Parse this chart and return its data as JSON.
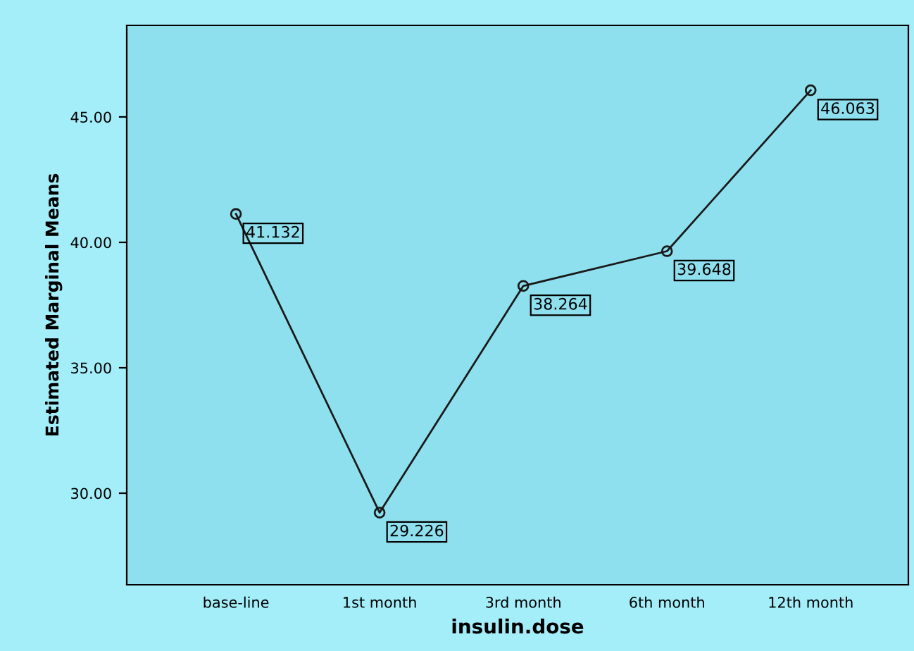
{
  "chart_data": {
    "type": "line",
    "xlabel": "insulin.dose",
    "ylabel": "Estimated Marginal Means",
    "categories": [
      "base-line",
      "1st month",
      "3rd month",
      "6th month",
      "12th month"
    ],
    "series": [
      {
        "color": "#1a1a1a",
        "values": [
          41.132,
          29.226,
          38.264,
          39.648,
          46.063
        ]
      }
    ],
    "ylim": [
      26.35,
      48.65
    ],
    "yticks": [
      {
        "value": 30,
        "label": "30.00"
      },
      {
        "value": 35,
        "label": "35.00"
      },
      {
        "value": 40,
        "label": "40.00"
      },
      {
        "value": 45,
        "label": "45.00"
      }
    ],
    "data_labels": true,
    "marker": "circle",
    "line_style": "solid",
    "grid": false,
    "legend": false
  }
}
